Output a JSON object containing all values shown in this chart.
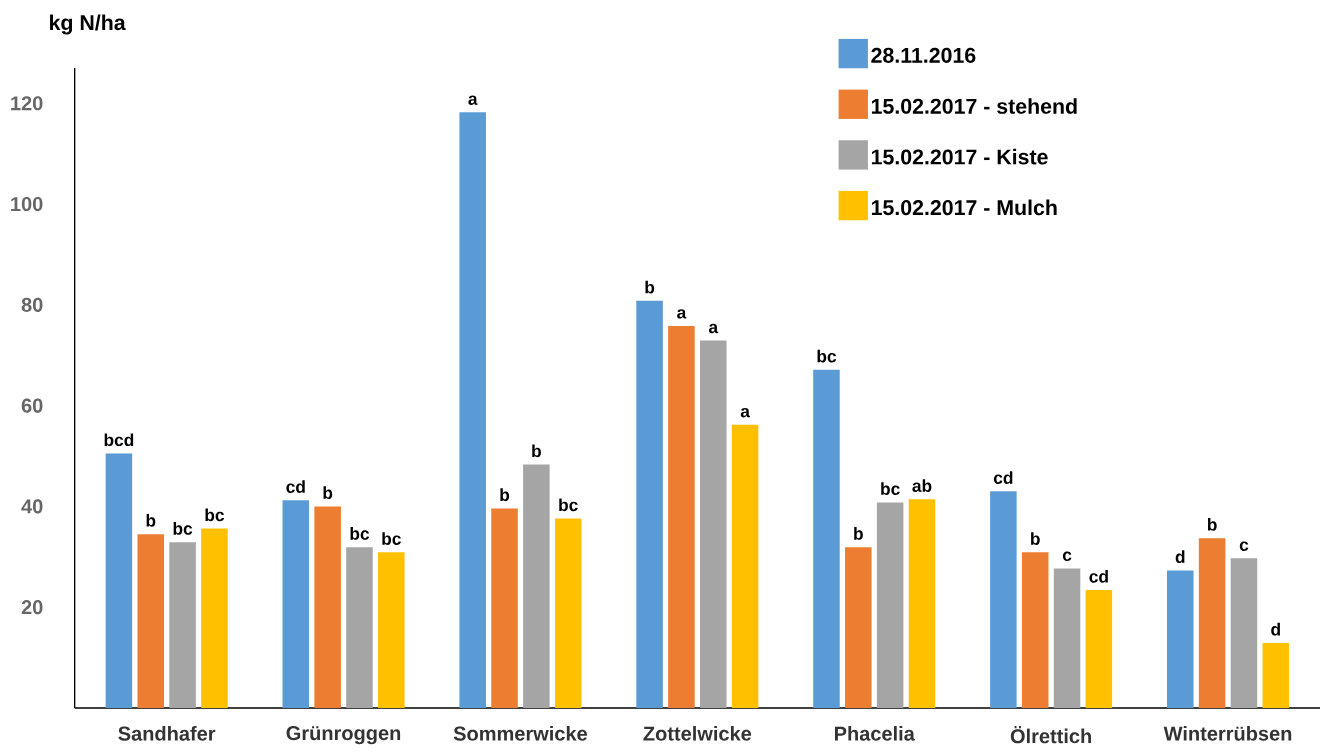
{
  "chart_data": {
    "type": "bar",
    "ylabel": "kg N/ha",
    "categories": [
      "Sandhafer",
      "Grünroggen",
      "Sommerwicke",
      "Zottelwicke",
      "Phacelia",
      "Ölrettich",
      "Winterrübsen"
    ],
    "series": [
      {
        "name": "28.11.2016",
        "color": "#5b9bd5",
        "values": [
          50.5,
          41.2,
          118.2,
          80.8,
          67.1,
          43,
          27.3
        ],
        "value_labels": [
          "bcd",
          "cd",
          "a",
          "b",
          "bc",
          "cd",
          "d"
        ]
      },
      {
        "name": "15.02.2017 - stehend",
        "color": "#ed7d31",
        "values": [
          34.5,
          40,
          39.6,
          75.8,
          31.9,
          30.9,
          33.7
        ],
        "value_labels": [
          "b",
          "b",
          "b",
          "a",
          "b",
          "b",
          "b"
        ]
      },
      {
        "name": "15.02.2017 - Kiste",
        "color": "#a5a5a5",
        "values": [
          32.9,
          31.9,
          48.3,
          72.9,
          40.8,
          27.7,
          29.7
        ],
        "value_labels": [
          "bc",
          "bc",
          "b",
          "a",
          "bc",
          "c",
          "c"
        ]
      },
      {
        "name": "15.02.2017 - Mulch",
        "color": "#ffc000",
        "values": [
          35.6,
          30.9,
          37.6,
          56.2,
          41.4,
          23.4,
          12.9
        ],
        "value_labels": [
          "bc",
          "bc",
          "bc",
          "a",
          "ab",
          "cd",
          "d"
        ]
      }
    ],
    "ylim": [
      0,
      127
    ],
    "yticks": [
      20,
      40,
      60,
      80,
      100,
      120
    ],
    "grid": false,
    "legend": "top right"
  }
}
